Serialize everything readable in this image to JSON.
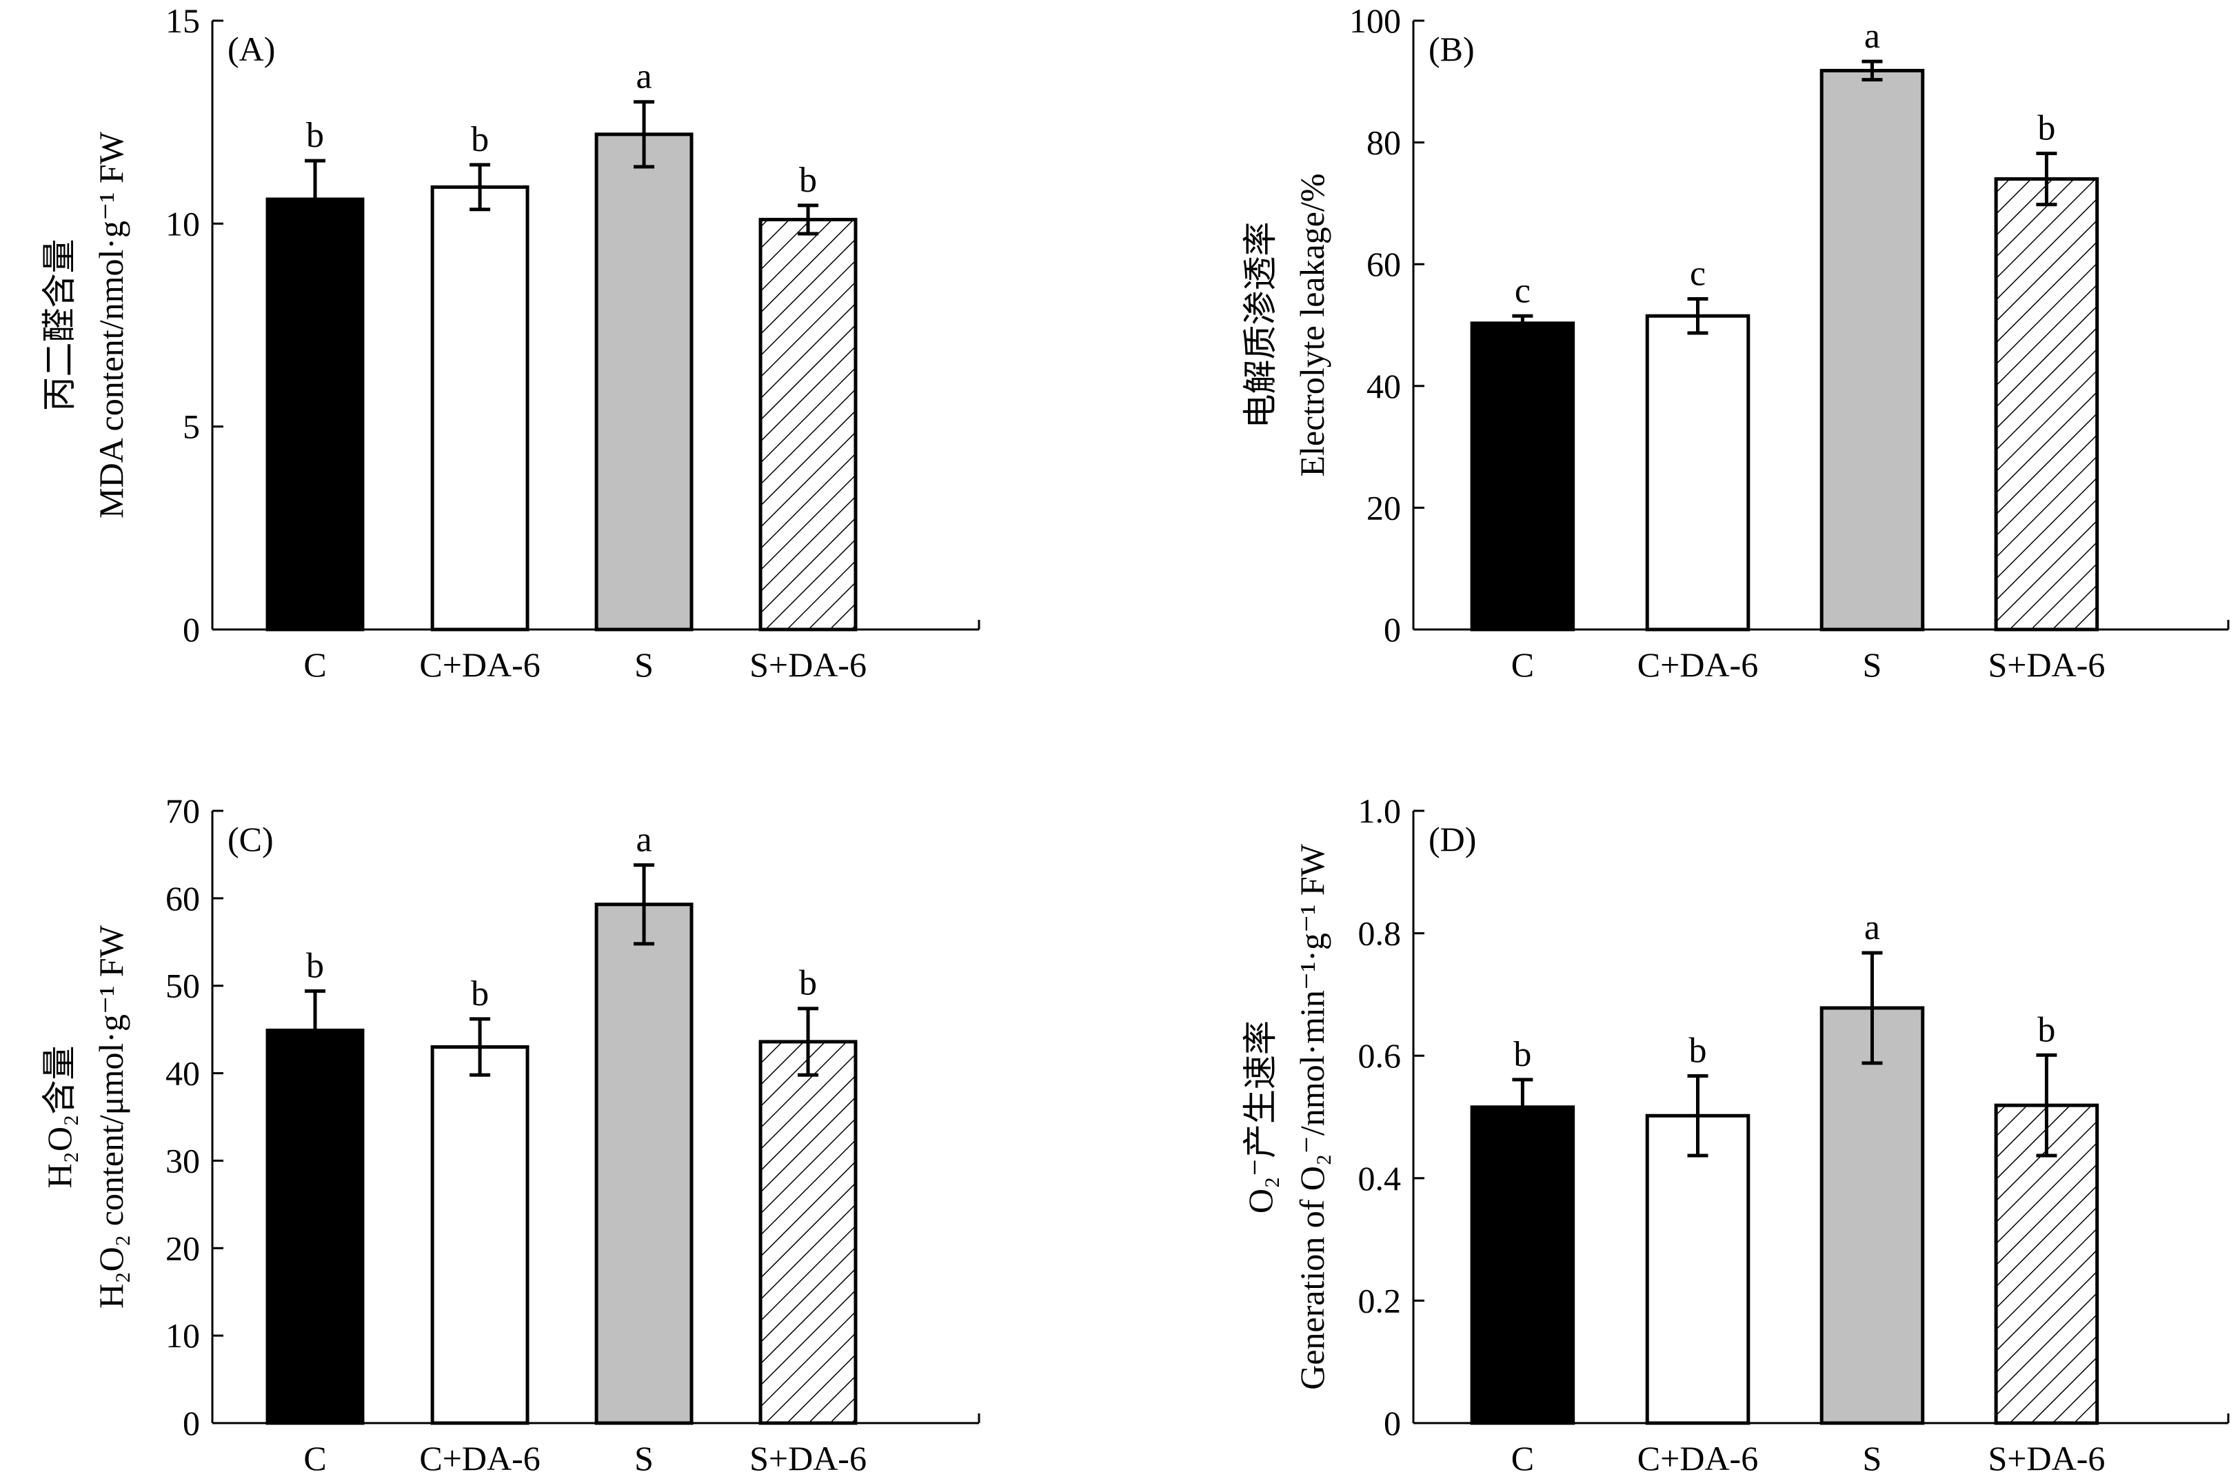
{
  "colors": {
    "C": "#000000",
    "C+DA-6": "#ffffff",
    "S": "#c0c0c0",
    "S+DA-6": "hatched"
  },
  "chart_data": [
    {
      "type": "bar",
      "panel": "(A)",
      "categories": [
        "C",
        "C+DA-6",
        "S",
        "S+DA-6"
      ],
      "values": [
        10.6,
        10.9,
        12.2,
        10.1
      ],
      "errors": [
        0.95,
        0.55,
        0.8,
        0.35
      ],
      "significance": [
        "b",
        "b",
        "a",
        "b"
      ],
      "ylabel_cn": "丙二醛含量",
      "ylabel_en": "MDA content/nmol·g⁻¹ FW",
      "ylim": [
        0,
        15
      ],
      "yticks": [
        "0",
        "5",
        "10",
        "15"
      ]
    },
    {
      "type": "bar",
      "panel": "(B)",
      "categories": [
        "C",
        "C+DA-6",
        "S",
        "S+DA-6"
      ],
      "values": [
        50.3,
        51.5,
        91.8,
        74.0
      ],
      "errors": [
        1.2,
        2.8,
        1.5,
        4.2
      ],
      "significance": [
        "c",
        "c",
        "a",
        "b"
      ],
      "ylabel_cn": "电解质渗透率",
      "ylabel_en": "Electrolyte leakage/%",
      "ylim": [
        0,
        100
      ],
      "yticks": [
        "0",
        "20",
        "40",
        "60",
        "80",
        "100"
      ]
    },
    {
      "type": "bar",
      "panel": "(C)",
      "categories": [
        "C",
        "C+DA-6",
        "S",
        "S+DA-6"
      ],
      "values": [
        44.9,
        43.0,
        59.3,
        43.6
      ],
      "errors": [
        4.5,
        3.2,
        4.5,
        3.8
      ],
      "significance": [
        "b",
        "b",
        "a",
        "b"
      ],
      "ylabel_cn": "H₂O₂含量",
      "ylabel_en": "H₂O₂ content/μmol·g⁻¹ FW",
      "ylim": [
        0,
        70
      ],
      "yticks": [
        "0",
        "10",
        "20",
        "30",
        "40",
        "50",
        "60",
        "70"
      ]
    },
    {
      "type": "bar",
      "panel": "(D)",
      "categories": [
        "C",
        "C+DA-6",
        "S",
        "S+DA-6"
      ],
      "values": [
        0.516,
        0.502,
        0.678,
        0.519
      ],
      "errors": [
        0.045,
        0.065,
        0.09,
        0.082
      ],
      "significance": [
        "b",
        "b",
        "a",
        "b"
      ],
      "ylabel_cn": "O₂⁻产生速率",
      "ylabel_en": "Generation of O₂⁻/nmol·min⁻¹·g⁻¹ FW",
      "ylim": [
        0,
        1.0
      ],
      "yticks": [
        "0",
        "0.2",
        "0.4",
        "0.6",
        "0.8",
        "1.0"
      ]
    }
  ]
}
